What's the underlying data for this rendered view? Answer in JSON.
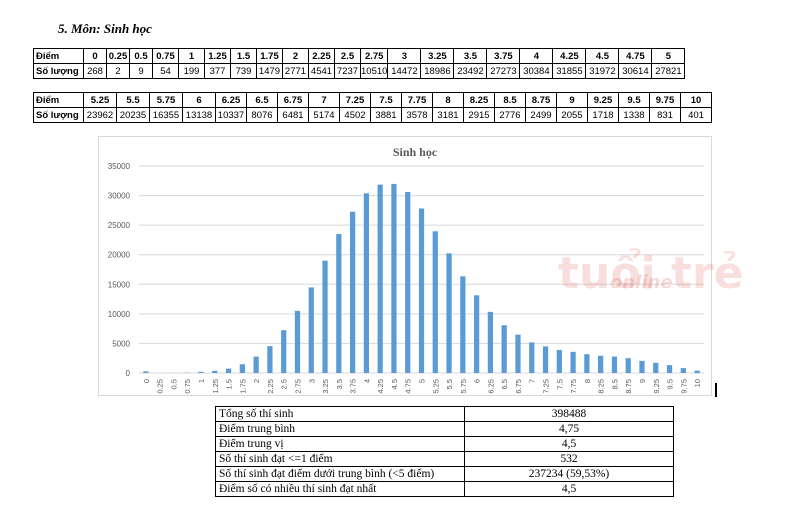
{
  "heading": "5.  Môn: Sinh học",
  "tables": {
    "row_label_score": "Điểm",
    "row_label_count": "Số lượng",
    "part1": {
      "scores": [
        "0",
        "0.25",
        "0.5",
        "0.75",
        "1",
        "1.25",
        "1.5",
        "1.75",
        "2",
        "2.25",
        "2.5",
        "2.75",
        "3",
        "3.25",
        "3.5",
        "3.75",
        "4",
        "4.25",
        "4.5",
        "4.75",
        "5"
      ],
      "counts": [
        "268",
        "2",
        "9",
        "54",
        "199",
        "377",
        "739",
        "1479",
        "2771",
        "4541",
        "7237",
        "10510",
        "14472",
        "18986",
        "23492",
        "27273",
        "30384",
        "31855",
        "31972",
        "30614",
        "27821"
      ]
    },
    "part2": {
      "scores": [
        "5.25",
        "5.5",
        "5.75",
        "6",
        "6.25",
        "6.5",
        "6.75",
        "7",
        "7.25",
        "7.5",
        "7.75",
        "8",
        "8.25",
        "8.5",
        "8.75",
        "9",
        "9.25",
        "9.5",
        "9.75",
        "10"
      ],
      "counts": [
        "23962",
        "20235",
        "16355",
        "13138",
        "10337",
        "8076",
        "6481",
        "5174",
        "4502",
        "3881",
        "3578",
        "3181",
        "2915",
        "2776",
        "2499",
        "2055",
        "1718",
        "1338",
        "831",
        "401"
      ]
    }
  },
  "chart_data": {
    "type": "bar",
    "title": "Sinh học",
    "xlabel": "",
    "ylabel": "",
    "ylim": [
      0,
      35000
    ],
    "yticks": [
      0,
      5000,
      10000,
      15000,
      20000,
      25000,
      30000,
      35000
    ],
    "grid": true,
    "legend": "none",
    "bar_color": "#5b9bd5",
    "categories": [
      "0",
      "0.25",
      "0.5",
      "0.75",
      "1",
      "1.25",
      "1.5",
      "1.75",
      "2",
      "2.25",
      "2.5",
      "2.75",
      "3",
      "3.25",
      "3.5",
      "3.75",
      "4",
      "4.25",
      "4.5",
      "4.75",
      "5",
      "5.25",
      "5.5",
      "5.75",
      "6",
      "6.25",
      "6.5",
      "6.75",
      "7",
      "7.25",
      "7.5",
      "7.75",
      "8",
      "8.25",
      "8.5",
      "8.75",
      "9",
      "9.25",
      "9.5",
      "9.75",
      "10"
    ],
    "values": [
      268,
      2,
      9,
      54,
      199,
      377,
      739,
      1479,
      2771,
      4541,
      7237,
      10510,
      14472,
      18986,
      23492,
      27273,
      30384,
      31855,
      31972,
      30614,
      27821,
      23962,
      20235,
      16355,
      13138,
      10337,
      8076,
      6481,
      5174,
      4502,
      3881,
      3578,
      3181,
      2915,
      2776,
      2499,
      2055,
      1718,
      1338,
      831,
      401
    ]
  },
  "watermark": {
    "main": "tuổi trẻ",
    "sub": "online"
  },
  "stats": [
    {
      "label": "Tổng số thí sinh",
      "value": "398488"
    },
    {
      "label": "Điểm trung bình",
      "value": "4,75"
    },
    {
      "label": "Điểm trung vị",
      "value": "4,5"
    },
    {
      "label": "Số thí sinh đạt <=1 điểm",
      "value": "532"
    },
    {
      "label": "Số thí sinh đạt điểm dưới trung bình (<5 điểm)",
      "value": "237234 (59,53%)"
    },
    {
      "label": "Điểm số có nhiều thí sinh đạt nhất",
      "value": "4,5"
    }
  ]
}
